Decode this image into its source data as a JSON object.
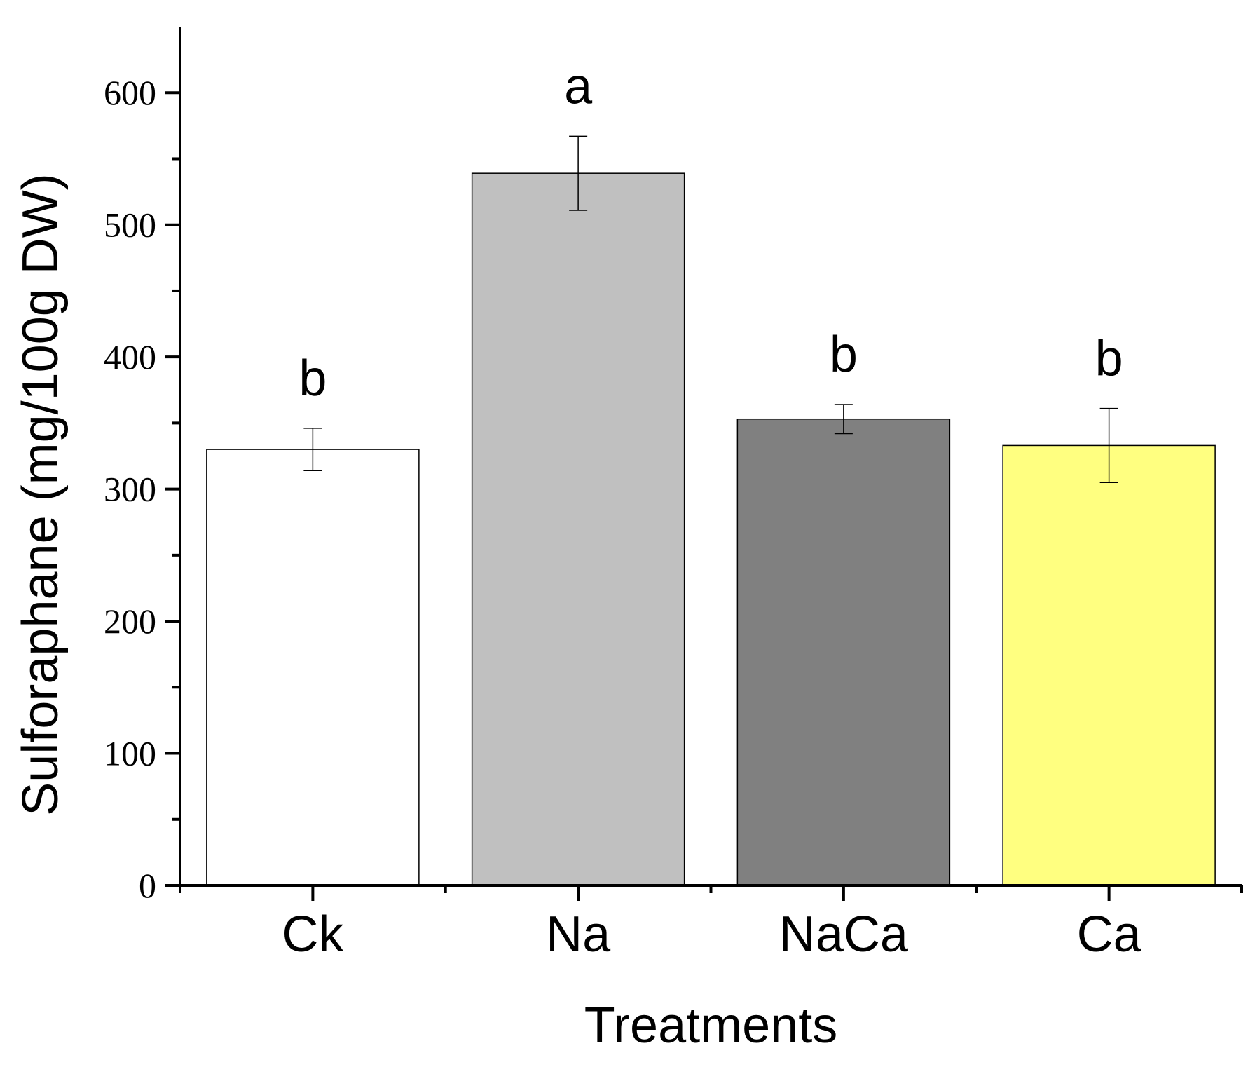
{
  "chart_data": {
    "type": "bar",
    "title": "",
    "xlabel": "Treatments",
    "ylabel": "Sulforaphane (mg/100g DW)",
    "ylim": [
      0,
      650
    ],
    "yticks": [
      0,
      100,
      200,
      300,
      400,
      500,
      600
    ],
    "categories": [
      "Ck",
      "Na",
      "NaCa",
      "Ca"
    ],
    "values": [
      330,
      539,
      353,
      333
    ],
    "errors": [
      16,
      28,
      11,
      28
    ],
    "significance": [
      "b",
      "a",
      "b",
      "b"
    ],
    "colors": [
      "#ffffff",
      "#c0c0c0",
      "#808080",
      "#ffff80"
    ]
  }
}
